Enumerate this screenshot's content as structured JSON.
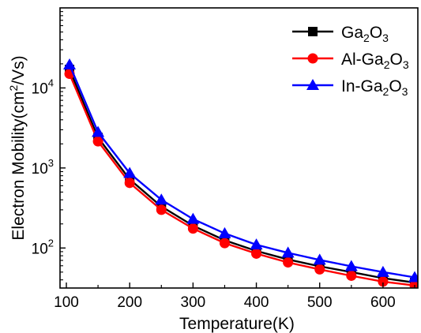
{
  "chart_data": {
    "type": "line",
    "title": "",
    "xlabel": "Temperature(K)",
    "ylabel": "Electron Mobility(cm²/Vs)",
    "ylabel_parts": [
      "Electron Mobility(cm",
      "2",
      "/Vs)"
    ],
    "xlim": [
      90,
      655
    ],
    "ylim_log10": [
      1.5,
      5.0
    ],
    "y_scale": "log",
    "x_ticks": [
      100,
      200,
      300,
      400,
      500,
      600
    ],
    "x_tick_labels": [
      "100",
      "200",
      "300",
      "400",
      "500",
      "600"
    ],
    "y_ticks": [
      {
        "value": 100,
        "base": "10",
        "exp": "2"
      },
      {
        "value": 1000,
        "base": "10",
        "exp": "3"
      },
      {
        "value": 10000,
        "base": "10",
        "exp": "4"
      }
    ],
    "grid": false,
    "legend_position": "top-right",
    "x": [
      105,
      150,
      200,
      250,
      300,
      350,
      400,
      450,
      500,
      550,
      600,
      650
    ],
    "series": [
      {
        "name": "Ga2O3",
        "name_parts": [
          "Ga",
          "2",
          "O",
          "3"
        ],
        "color": "#000000",
        "marker": "square",
        "values": [
          17000,
          2400,
          720,
          330,
          190,
          125,
          92,
          72,
          59,
          50,
          42,
          37
        ]
      },
      {
        "name": "Al-Ga2O3",
        "name_parts": [
          "Al-Ga",
          "2",
          "O",
          "3"
        ],
        "color": "#ff0000",
        "marker": "circle",
        "values": [
          15000,
          2150,
          650,
          300,
          175,
          115,
          85,
          66,
          54,
          45,
          38,
          34
        ]
      },
      {
        "name": "In-Ga2O3",
        "name_parts": [
          "In-Ga",
          "2",
          "O",
          "3"
        ],
        "color": "#0000ff",
        "marker": "triangle",
        "values": [
          19500,
          2800,
          860,
          400,
          230,
          152,
          110,
          87,
          71,
          59,
          50,
          43
        ]
      }
    ]
  }
}
